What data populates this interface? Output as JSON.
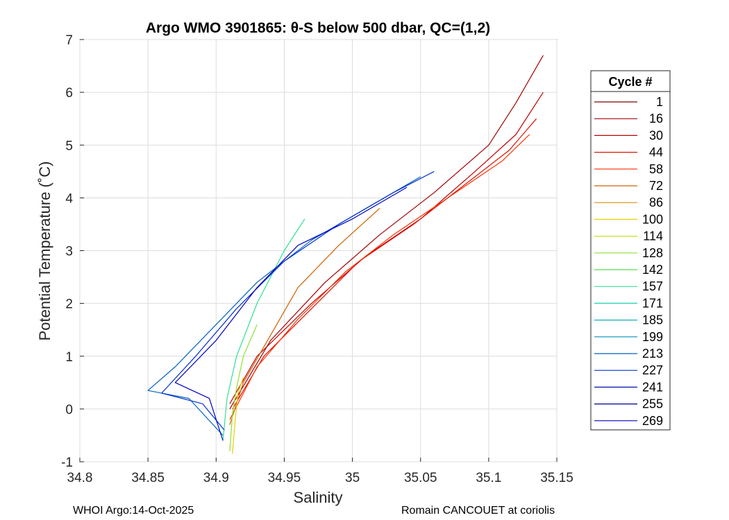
{
  "figure": {
    "title": "Argo WMO 3901865: θ-S below 500 dbar,  QC=(1,2)",
    "footer_left": "WHOI Argo:14-Oct-2025",
    "footer_right": "Romain CANCOUET at coriolis"
  },
  "chart_data": {
    "type": "line",
    "title": "Argo WMO 3901865: θ-S below 500 dbar,  QC=(1,2)",
    "xlabel": "Salinity",
    "ylabel": "Potential Temperature (˚C)",
    "xlim": [
      34.8,
      35.15
    ],
    "ylim": [
      -1,
      7
    ],
    "xticks": [
      "34.8",
      "34.85",
      "34.9",
      "34.95",
      "35",
      "35.05",
      "35.1",
      "35.15"
    ],
    "yticks": [
      "-1",
      "0",
      "1",
      "2",
      "3",
      "4",
      "5",
      "6",
      "7"
    ],
    "grid": true,
    "legend": {
      "title": "Cycle #",
      "placement": "outside-right",
      "entries": [
        {
          "label": "1",
          "color": "#7f0000"
        },
        {
          "label": "16",
          "color": "#a00000"
        },
        {
          "label": "30",
          "color": "#c00000"
        },
        {
          "label": "44",
          "color": "#e01000"
        },
        {
          "label": "58",
          "color": "#ff3000"
        },
        {
          "label": "72",
          "color": "#d06000"
        },
        {
          "label": "86",
          "color": "#d09000"
        },
        {
          "label": "100",
          "color": "#e8d000"
        },
        {
          "label": "114",
          "color": "#c8e020"
        },
        {
          "label": "128",
          "color": "#90e030"
        },
        {
          "label": "142",
          "color": "#50e050"
        },
        {
          "label": "157",
          "color": "#30e090"
        },
        {
          "label": "171",
          "color": "#20d0b0"
        },
        {
          "label": "185",
          "color": "#10b0c0"
        },
        {
          "label": "199",
          "color": "#0090b0"
        },
        {
          "label": "213",
          "color": "#0060c0"
        },
        {
          "label": "227",
          "color": "#0030d0"
        },
        {
          "label": "241",
          "color": "#0010b0"
        },
        {
          "label": "255",
          "color": "#000090"
        },
        {
          "label": "269",
          "color": "#0000c0"
        }
      ]
    },
    "series": [
      {
        "color": "#a00000",
        "x": [
          34.91,
          34.94,
          34.98,
          35.02,
          35.06,
          35.1,
          35.12,
          35.14
        ],
        "y": [
          0.0,
          1.3,
          2.4,
          3.3,
          4.1,
          5.0,
          5.8,
          6.7
        ]
      },
      {
        "color": "#c00000",
        "x": [
          34.91,
          34.93,
          34.97,
          35.01,
          35.05,
          35.09,
          35.12,
          35.14
        ],
        "y": [
          0.1,
          1.0,
          2.0,
          2.9,
          3.6,
          4.5,
          5.2,
          6.0
        ]
      },
      {
        "color": "#e01000",
        "x": [
          34.912,
          34.935,
          34.97,
          35.005,
          35.045,
          35.085,
          35.115,
          35.135
        ],
        "y": [
          0.0,
          1.0,
          1.9,
          2.8,
          3.5,
          4.3,
          4.9,
          5.5
        ]
      },
      {
        "color": "#ff3000",
        "x": [
          34.91,
          34.93,
          34.96,
          34.995,
          35.03,
          35.07,
          35.11,
          35.13
        ],
        "y": [
          -0.2,
          0.8,
          1.7,
          2.6,
          3.3,
          4.0,
          4.7,
          5.2
        ]
      },
      {
        "color": "#d06000",
        "x": [
          34.91,
          34.92,
          34.94,
          34.96,
          34.99,
          35.02
        ],
        "y": [
          -0.3,
          0.5,
          1.4,
          2.3,
          3.1,
          3.8
        ]
      },
      {
        "color": "#e8d000",
        "x": [
          34.912,
          34.914,
          34.916,
          34.92
        ],
        "y": [
          -0.85,
          -0.2,
          0.3,
          0.6
        ]
      },
      {
        "color": "#90e030",
        "x": [
          34.91,
          34.912,
          34.915,
          34.92,
          34.93
        ],
        "y": [
          -0.8,
          -0.1,
          0.4,
          1.0,
          1.6
        ]
      },
      {
        "color": "#30e090",
        "x": [
          34.905,
          34.908,
          34.915,
          34.93,
          34.95,
          34.965
        ],
        "y": [
          -0.6,
          0.2,
          1.0,
          2.0,
          3.0,
          3.6
        ]
      },
      {
        "color": "#0060c0",
        "x": [
          34.905,
          34.88,
          34.85,
          34.87,
          34.9,
          34.93,
          34.97,
          35.01,
          35.05
        ],
        "y": [
          -0.5,
          0.2,
          0.35,
          0.8,
          1.6,
          2.4,
          3.2,
          3.8,
          4.4
        ]
      },
      {
        "color": "#0030d0",
        "x": [
          34.906,
          34.89,
          34.86,
          34.885,
          34.915,
          34.95,
          34.99,
          35.03,
          35.06
        ],
        "y": [
          -0.4,
          0.1,
          0.3,
          1.0,
          1.9,
          2.8,
          3.5,
          4.1,
          4.5
        ]
      },
      {
        "color": "#0000c0",
        "x": [
          34.905,
          34.895,
          34.87,
          34.9,
          34.93,
          34.96,
          35.0,
          35.04
        ],
        "y": [
          -0.6,
          0.2,
          0.5,
          1.3,
          2.3,
          3.1,
          3.6,
          4.2
        ]
      }
    ]
  }
}
